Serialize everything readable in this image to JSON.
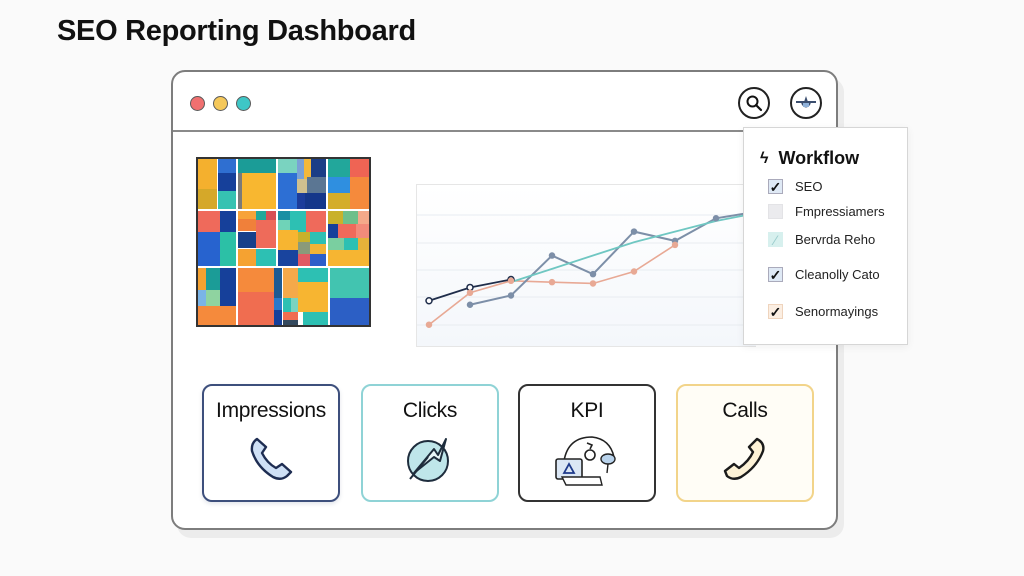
{
  "page": {
    "title": "SEO Reporting Dashboard"
  },
  "window": {
    "traffic_lights": [
      {
        "name": "close",
        "color": "#f07070"
      },
      {
        "name": "minimize",
        "color": "#f5c85a"
      },
      {
        "name": "maximize",
        "color": "#3ec6c6"
      }
    ],
    "toolbar": {
      "search_icon": "search-icon",
      "profile_icon": "airplane-icon"
    }
  },
  "workflow_panel": {
    "title": "Workflow",
    "title_icon": "lightning-icon",
    "items": [
      {
        "label": "SEO",
        "checked": true,
        "box_color": "#dfe9f5"
      },
      {
        "label": "Fmpressiamers",
        "checked": false,
        "box_color": "#ebebee"
      },
      {
        "label": "Bervrda Reho",
        "checked": "partial",
        "box_color": "#d7f0ee"
      },
      {
        "label": "Cleanolly Cato",
        "checked": true,
        "box_color": "#dfe9f5"
      },
      {
        "label": "Senormayings",
        "checked": true,
        "box_color": "#fbeee2"
      }
    ]
  },
  "cards": [
    {
      "label": "Impressions",
      "icon": "phone-icon",
      "border": "#3d4f7c"
    },
    {
      "label": "Clicks",
      "icon": "refresh-arrows-icon",
      "border": "#8fd3d6"
    },
    {
      "label": "KPI",
      "icon": "kpi-collage-icon",
      "border": "#333333"
    },
    {
      "label": "Calls",
      "icon": "phone-icon",
      "border": "#f2d48a"
    }
  ],
  "chart_data": {
    "type": "line",
    "title": "",
    "xlabel": "",
    "ylabel": "",
    "grid": true,
    "x": [
      0,
      1,
      2,
      3,
      4,
      5,
      6,
      7,
      8
    ],
    "series": [
      {
        "name": "Dark navy",
        "color": "#1f2d4a",
        "values": [
          28,
          38,
          44,
          null,
          null,
          null,
          null,
          null,
          null
        ]
      },
      {
        "name": "Slate blue",
        "color": "#7d8fa8",
        "values": [
          null,
          25,
          32,
          62,
          48,
          80,
          73,
          90,
          95
        ]
      },
      {
        "name": "Teal trend",
        "color": "#6fc7c2",
        "values": [
          null,
          null,
          42,
          52,
          62,
          72,
          80,
          88,
          94
        ]
      },
      {
        "name": "Salmon",
        "color": "#e8a995",
        "values": [
          10,
          34,
          43,
          42,
          41,
          50,
          70,
          null,
          null
        ]
      }
    ],
    "ylim": [
      0,
      100
    ]
  }
}
